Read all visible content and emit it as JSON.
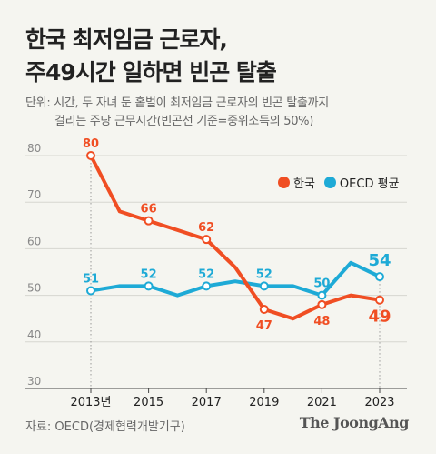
{
  "title_line1": "한국 최저임금 근로자,",
  "title_line2": "주49시간 일하면 빈곤 탈출",
  "subtitle_line1": "단위: 시간, 두 자녀 둔 홑벌이 최저임금 근로자의 빈곤 탈출까지",
  "subtitle_line2": "걸리는 주당 근무시간(빈곤선 기준=중위소득의 50%)",
  "source": "자료: OECD(경제협력개발기구)",
  "brand": "The JoongAng",
  "chart_data": {
    "type": "line",
    "title": "한국 최저임금 근로자, 주49시간 일하면 빈곤 탈출",
    "ylabel": "시간",
    "ylim": [
      30,
      80
    ],
    "yticks": [
      30,
      40,
      50,
      60,
      70,
      80
    ],
    "x": [
      2013,
      2014,
      2015,
      2016,
      2017,
      2018,
      2019,
      2020,
      2021,
      2022,
      2023
    ],
    "xtick_values": [
      2013,
      2015,
      2017,
      2019,
      2021,
      2023
    ],
    "xtick_labels": [
      "2013년",
      "2015",
      "2017",
      "2019",
      "2021",
      "2023"
    ],
    "legend_position": "top-right",
    "series": [
      {
        "name": "한국",
        "color": "#f04e23",
        "values": [
          80,
          68,
          66,
          64,
          62,
          56,
          47,
          45,
          48,
          50,
          49
        ],
        "labeled": {
          "2013": "80",
          "2015": "66",
          "2017": "62",
          "2019": "47",
          "2021": "48",
          "2023": "49"
        }
      },
      {
        "name": "OECD 평균",
        "color": "#1eaad6",
        "values": [
          51,
          52,
          52,
          50,
          52,
          53,
          52,
          52,
          50,
          57,
          54
        ],
        "labeled": {
          "2013": "51",
          "2015": "52",
          "2017": "52",
          "2019": "52",
          "2021": "50",
          "2023": "54"
        }
      }
    ]
  }
}
